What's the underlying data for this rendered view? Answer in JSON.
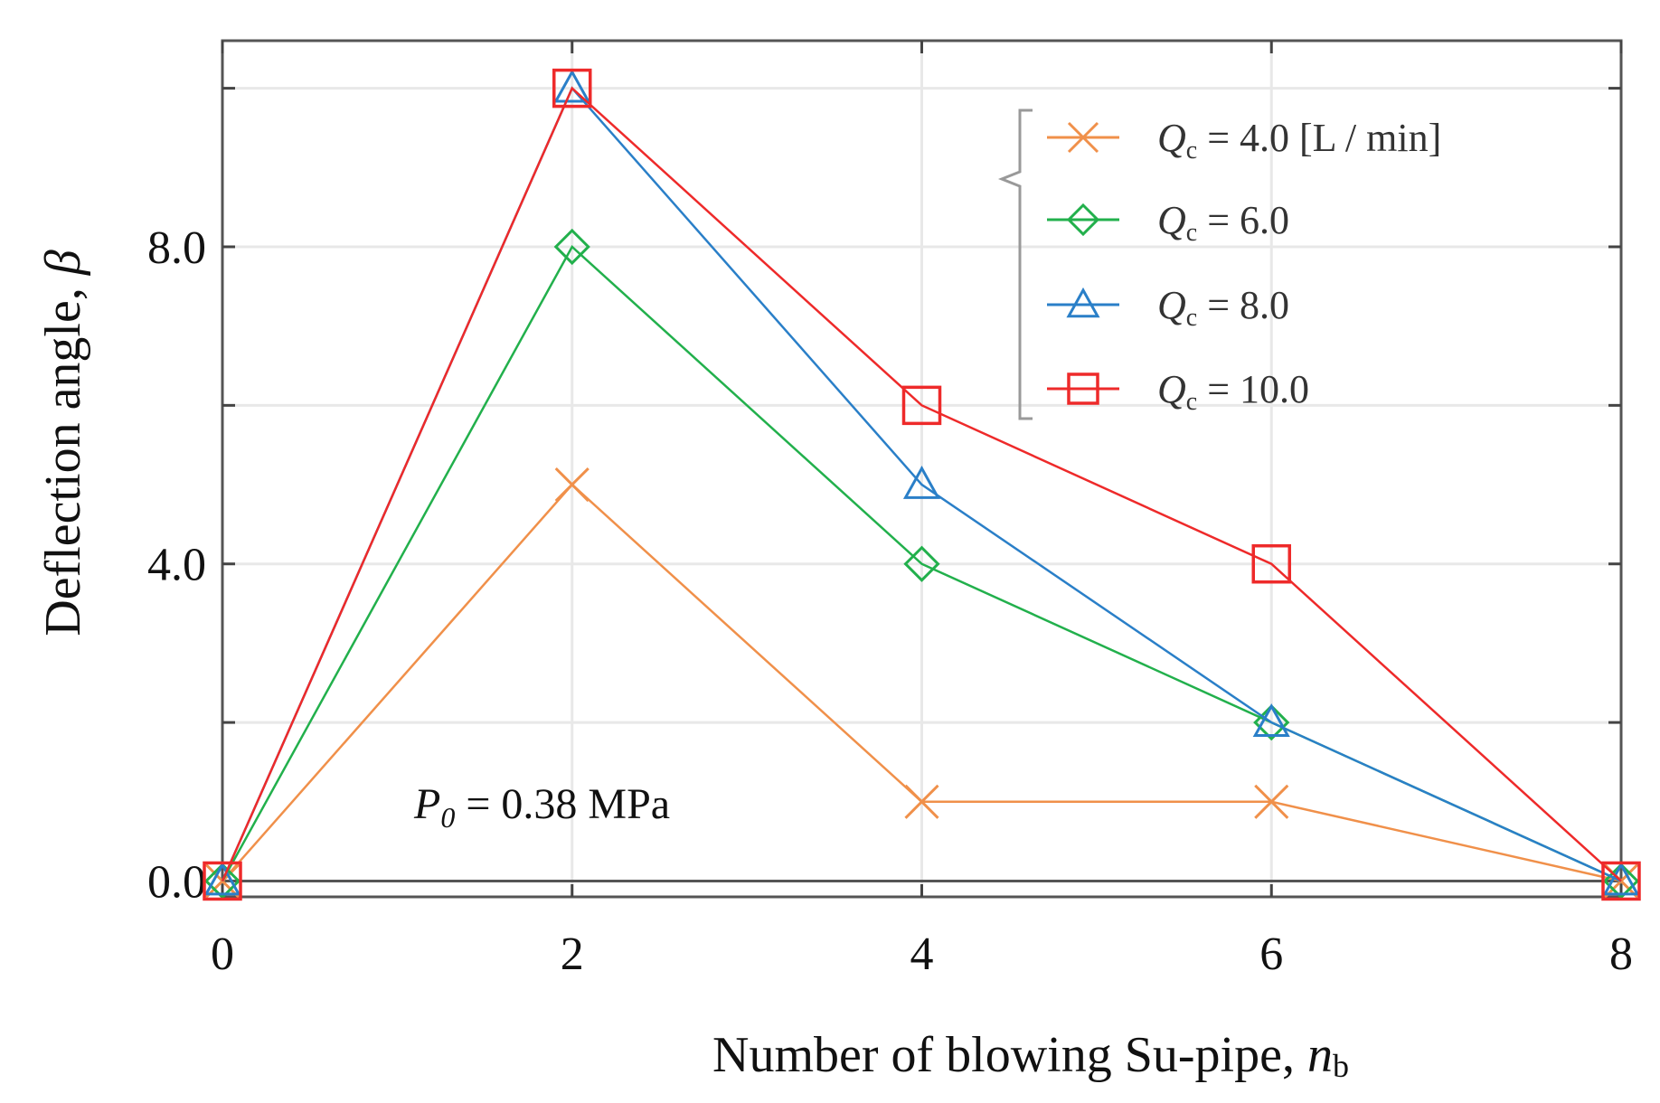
{
  "chart_data": {
    "type": "line",
    "title": "",
    "xlabel": "Number of blowing Su-pipe, ",
    "xlabel_var": "n",
    "xlabel_sub": "b",
    "ylabel": "Deflection angle, ",
    "ylabel_var": "β",
    "xlim": [
      0,
      8
    ],
    "ylim": [
      -0.2,
      10.6
    ],
    "x_ticks": [
      0,
      2,
      4,
      6,
      8
    ],
    "x_tick_labels": [
      "0",
      "2",
      "4",
      "6",
      "8"
    ],
    "y_ticks": [
      0,
      2,
      4,
      6,
      8,
      10
    ],
    "y_tick_labels": [
      "0.0",
      "",
      "4.0",
      "",
      "8.0",
      ""
    ],
    "grid": true,
    "legend_position": "top-right",
    "legend_unit": "[L / min]",
    "annotation": {
      "var": "P",
      "sub": "0",
      "text": " = 0.38 MPa"
    },
    "series": [
      {
        "name": "Qc = 4.0",
        "symbol": "Q",
        "sub": "c",
        "value_label": "= 4.0 [L / min]",
        "marker": "x",
        "color": "#f0904a",
        "x": [
          0,
          2,
          4,
          6,
          8
        ],
        "y": [
          0,
          5,
          1,
          1,
          0
        ]
      },
      {
        "name": "Qc = 6.0",
        "symbol": "Q",
        "sub": "c",
        "value_label": "= 6.0",
        "marker": "diamond",
        "color": "#22b04c",
        "x": [
          0,
          2,
          4,
          6,
          8
        ],
        "y": [
          0,
          8,
          4,
          2,
          0
        ]
      },
      {
        "name": "Qc = 8.0",
        "symbol": "Q",
        "sub": "c",
        "value_label": "= 8.0",
        "marker": "triangle",
        "color": "#2a7fc8",
        "x": [
          0,
          2,
          4,
          6,
          8
        ],
        "y": [
          0,
          10,
          5,
          2,
          0
        ]
      },
      {
        "name": "Qc = 10.0",
        "symbol": "Q",
        "sub": "c",
        "value_label": "= 10.0",
        "marker": "square",
        "color": "#ee2a2a",
        "x": [
          0,
          2,
          4,
          6,
          8
        ],
        "y": [
          0,
          10,
          6,
          4,
          0
        ]
      }
    ]
  }
}
